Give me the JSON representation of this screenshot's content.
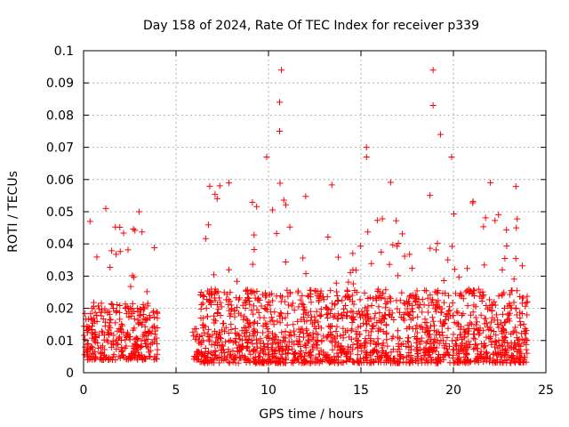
{
  "chart_data": {
    "type": "scatter",
    "title": "Day 158 of 2024, Rate Of TEC Index for receiver p339",
    "xlabel": "GPS time / hours",
    "ylabel": "ROTI / TECUs",
    "xlim": [
      0,
      25
    ],
    "ylim": [
      0,
      0.1
    ],
    "xticks": [
      "0",
      "5",
      "10",
      "15",
      "20",
      "25"
    ],
    "yticks": [
      "0",
      "0.01",
      "0.02",
      "0.03",
      "0.04",
      "0.05",
      "0.06",
      "0.07",
      "0.08",
      "0.09",
      "0.1"
    ],
    "grid": true,
    "marker": "+",
    "color": "#ff0000",
    "notable_points": [
      {
        "x": 0.35,
        "y": 0.047
      },
      {
        "x": 1.2,
        "y": 0.051
      },
      {
        "x": 3.0,
        "y": 0.05
      },
      {
        "x": 9.9,
        "y": 0.067
      },
      {
        "x": 10.7,
        "y": 0.094
      },
      {
        "x": 10.6,
        "y": 0.084
      },
      {
        "x": 10.6,
        "y": 0.075
      },
      {
        "x": 15.3,
        "y": 0.07
      },
      {
        "x": 15.3,
        "y": 0.067
      },
      {
        "x": 18.9,
        "y": 0.094
      },
      {
        "x": 18.9,
        "y": 0.083
      },
      {
        "x": 19.3,
        "y": 0.074
      },
      {
        "x": 19.9,
        "y": 0.067
      },
      {
        "x": 22.0,
        "y": 0.059
      },
      {
        "x": 23.4,
        "y": 0.045
      }
    ],
    "segments": [
      {
        "x": [
          0.0,
          4.0
        ],
        "base": [
          0.004,
          0.022
        ],
        "burst_max": 0.046,
        "density": 14
      },
      {
        "x": [
          5.9,
          6.3
        ],
        "base": [
          0.004,
          0.014
        ],
        "burst_max": 0.016,
        "density": 10
      },
      {
        "x": [
          6.3,
          24.0
        ],
        "base": [
          0.003,
          0.026
        ],
        "burst_max": 0.06,
        "density": 16
      }
    ]
  }
}
